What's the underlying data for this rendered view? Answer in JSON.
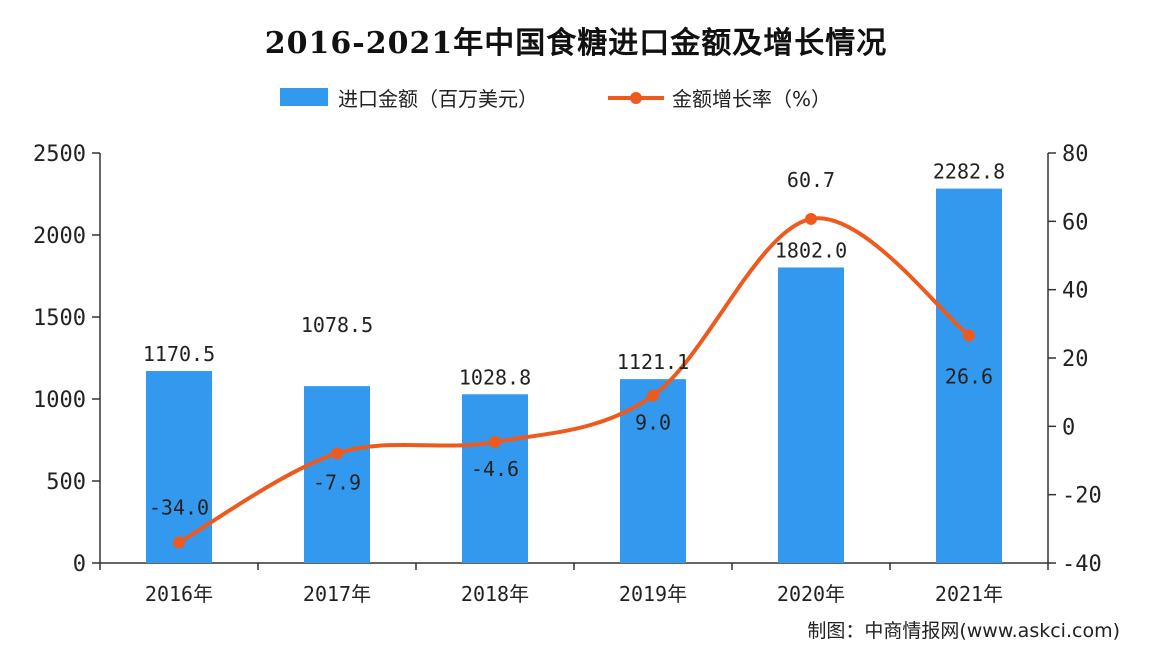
{
  "title": "2016-2021年中国食糖进口金额及增长情况",
  "legend": {
    "bar_label": "进口金额（百万美元）",
    "line_label": "金额增长率（%）"
  },
  "source": "制图：中商情报网(www.askci.com)",
  "colors": {
    "bar": "#3399ee",
    "line": "#ee5a1e",
    "axis": "#333333",
    "text": "#222222"
  },
  "chart_data": {
    "type": "bar",
    "categories": [
      "2016年",
      "2017年",
      "2018年",
      "2019年",
      "2020年",
      "2021年"
    ],
    "series": [
      {
        "name": "进口金额（百万美元）",
        "type": "bar",
        "axis": "left",
        "values": [
          1170.5,
          1078.5,
          1028.8,
          1121.1,
          1802.0,
          2282.8
        ],
        "labels": [
          "1170.5",
          "1078.5",
          "1028.8",
          "1121.1",
          "1802.0",
          "2282.8"
        ]
      },
      {
        "name": "金额增长率（%）",
        "type": "line",
        "axis": "right",
        "smooth": true,
        "values": [
          -34.0,
          -7.9,
          -4.6,
          9.0,
          60.7,
          26.6
        ],
        "labels": [
          "-34.0",
          "-7.9",
          "-4.6",
          "9.0",
          "60.7",
          "26.6"
        ]
      }
    ],
    "left_axis": {
      "min": 0,
      "max": 2500,
      "ticks": [
        "0",
        "500",
        "1000",
        "1500",
        "2000",
        "2500"
      ]
    },
    "right_axis": {
      "min": -40,
      "max": 80,
      "ticks": [
        "-40",
        "-20",
        "0",
        "20",
        "40",
        "60",
        "80"
      ]
    },
    "grid": false,
    "legend_position": "top"
  }
}
